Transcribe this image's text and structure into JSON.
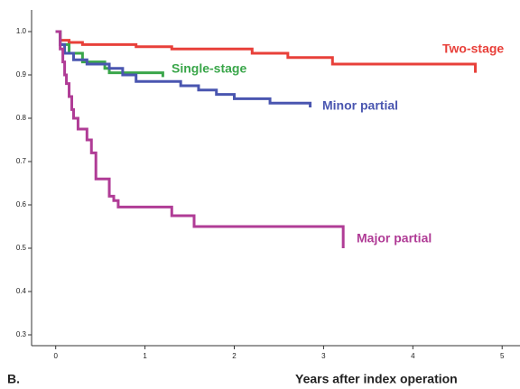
{
  "chart_data": {
    "type": "line",
    "step": true,
    "xlabel": "Years after index operation",
    "panel_label": "B.",
    "xlim": [
      -0.27,
      5.2
    ],
    "ylim": [
      0.275,
      1.05
    ],
    "xticks": [
      0,
      1,
      2,
      3,
      4,
      5
    ],
    "yticks": [
      {
        "value": 0.3,
        "label": "0.3"
      },
      {
        "value": 0.4,
        "label": "0.4"
      },
      {
        "value": 0.5,
        "label": "0.5"
      },
      {
        "value": 0.6,
        "label": "0.6"
      },
      {
        "value": 0.7,
        "label": "0.7"
      },
      {
        "value": 0.8,
        "label": "0.8"
      },
      {
        "value": 0.9,
        "label": "0.9"
      },
      {
        "value": 1.0,
        "label": "1.0"
      }
    ],
    "series": [
      {
        "name": "Two-stage",
        "color": "#e8403a",
        "x": [
          0,
          0.05,
          0.15,
          0.3,
          0.9,
          1.3,
          2.2,
          2.6,
          3.1,
          4.7,
          4.7
        ],
        "values": [
          1.0,
          0.98,
          0.975,
          0.97,
          0.965,
          0.96,
          0.95,
          0.94,
          0.925,
          0.925,
          0.905
        ]
      },
      {
        "name": "Single-stage",
        "color": "#3aa64a",
        "x": [
          0,
          0.05,
          0.15,
          0.3,
          0.55,
          0.6,
          1.2,
          1.2
        ],
        "values": [
          1.0,
          0.97,
          0.95,
          0.93,
          0.915,
          0.905,
          0.905,
          0.895
        ]
      },
      {
        "name": "Minor partial",
        "color": "#4a56b0",
        "x": [
          0,
          0.05,
          0.1,
          0.2,
          0.35,
          0.6,
          0.75,
          0.9,
          1.4,
          1.6,
          1.8,
          2.0,
          2.4,
          2.85,
          2.85
        ],
        "values": [
          1.0,
          0.97,
          0.95,
          0.935,
          0.925,
          0.915,
          0.9,
          0.885,
          0.875,
          0.865,
          0.855,
          0.845,
          0.835,
          0.835,
          0.825
        ]
      },
      {
        "name": "Major partial",
        "color": "#b03c96",
        "x": [
          0,
          0.05,
          0.08,
          0.1,
          0.12,
          0.15,
          0.18,
          0.2,
          0.25,
          0.35,
          0.4,
          0.45,
          0.6,
          0.65,
          0.7,
          1.3,
          1.55,
          3.22,
          3.22
        ],
        "values": [
          1.0,
          0.96,
          0.93,
          0.9,
          0.88,
          0.85,
          0.82,
          0.8,
          0.775,
          0.75,
          0.72,
          0.66,
          0.62,
          0.61,
          0.595,
          0.575,
          0.55,
          0.55,
          0.5
        ]
      }
    ]
  }
}
